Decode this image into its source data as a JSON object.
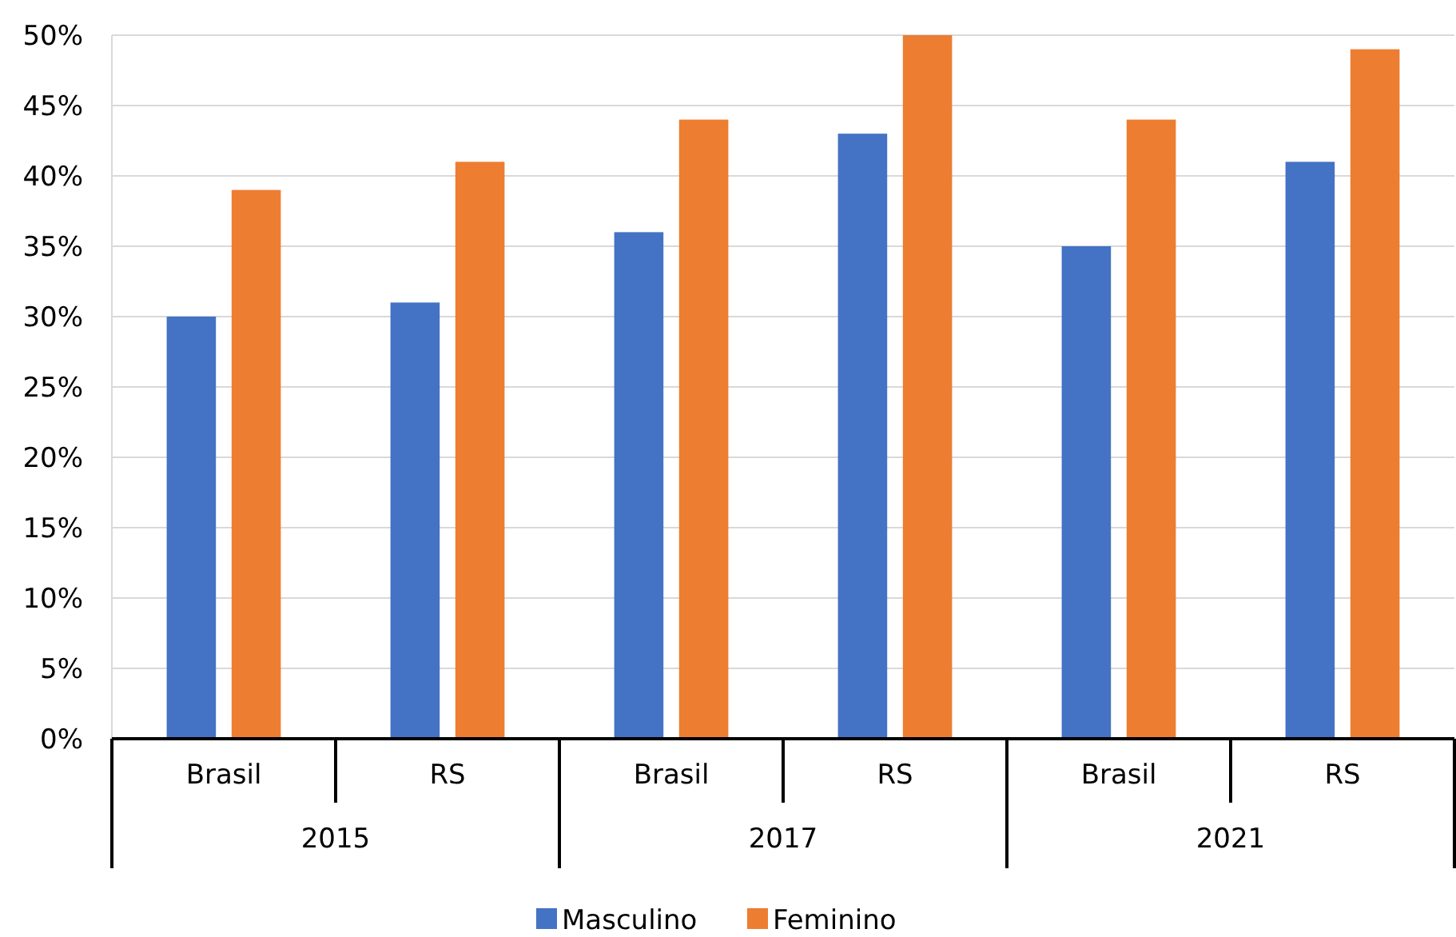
{
  "chart_data": {
    "type": "bar",
    "categories": [
      "Brasil",
      "RS",
      "Brasil",
      "RS",
      "Brasil",
      "RS"
    ],
    "series": [
      {
        "name": "Masculino",
        "color": "#4472c4",
        "values": [
          30,
          31,
          36,
          43,
          35,
          41
        ]
      },
      {
        "name": "Feminino",
        "color": "#ed7d31",
        "values": [
          39,
          41,
          44,
          50,
          44,
          49
        ]
      }
    ],
    "ylim": [
      0,
      50
    ],
    "yticks": [
      {
        "value": 0,
        "label": "0%"
      },
      {
        "value": 5,
        "label": "5%"
      },
      {
        "value": 10,
        "label": "10%"
      },
      {
        "value": 15,
        "label": "15%"
      },
      {
        "value": 20,
        "label": "20%"
      },
      {
        "value": 25,
        "label": "25%"
      },
      {
        "value": 30,
        "label": "30%"
      },
      {
        "value": 35,
        "label": "35%"
      },
      {
        "value": 40,
        "label": "40%"
      },
      {
        "value": 45,
        "label": "45%"
      },
      {
        "value": 50,
        "label": "50%"
      }
    ],
    "annotations": [
      "2015",
      "2017",
      "2021"
    ],
    "grid": "y",
    "legend": "bottom"
  }
}
